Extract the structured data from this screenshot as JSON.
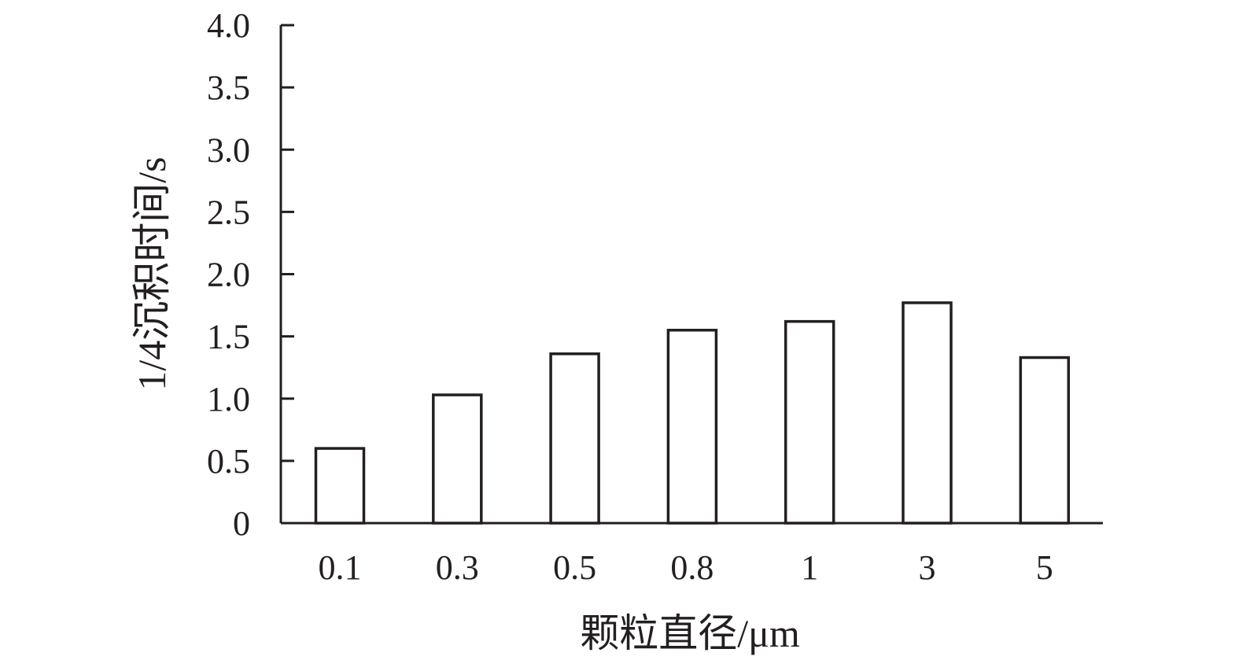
{
  "chart_data": {
    "type": "bar",
    "title": "",
    "xlabel": "颗粒直径/μm",
    "ylabel": "1/4沉积时间/s",
    "categories": [
      "0.1",
      "0.3",
      "0.5",
      "0.8",
      "1",
      "3",
      "5"
    ],
    "values": [
      0.6,
      1.03,
      1.36,
      1.55,
      1.62,
      1.77,
      1.33
    ],
    "ylim": [
      0,
      4.0
    ],
    "yticks": [
      "0",
      "0.5",
      "1.0",
      "1.5",
      "2.0",
      "2.5",
      "3.0",
      "3.5",
      "4.0"
    ],
    "grid": false,
    "legend": "none",
    "colors": {
      "bar_fill": "#ffffff",
      "bar_stroke": "#231f20",
      "axis": "#231f20",
      "text": "#231f20"
    }
  }
}
